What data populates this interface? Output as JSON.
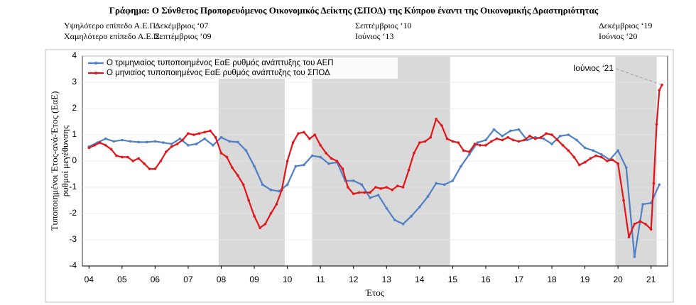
{
  "chart_data": {
    "type": "line",
    "title": "Γράφημα: Ο Σύνθετος Προπορευόμενος Οικονομικός Δείκτης (ΣΠΟΔ) της Κύπρου έναντι της Οικονομικής  Δραστηριότητας",
    "header": [
      {
        "label": "Υψηλότερο επίπεδο Α.Ε.Π:",
        "dates": [
          "Δεκέμβριος ‘07",
          "Σεπτέμβριος ‘10",
          "Δεκέμβριος ‘19"
        ]
      },
      {
        "label": "Χαμηλότερο επίπεδο Α.Ε.Π:",
        "dates": [
          "Σεπτέμβριος ‘09",
          "Ιούνιος ‘13",
          "Ιούνιος ‘20"
        ]
      }
    ],
    "y_label": [
      "Τυποποιημένοι Έτος-ανά-Έτος (ΕαΕ)",
      "ρυθμοί μεγέθυνσης"
    ],
    "x_label": "Έτος",
    "annotation": "Ιούνιος ‘21",
    "xlim": [
      2003.8,
      2021.5
    ],
    "ylim": [
      -4,
      4
    ],
    "yticks": [
      -4,
      -3,
      -2,
      -1,
      0,
      1,
      2,
      3,
      4
    ],
    "xticks": [
      {
        "value": 2004,
        "label": "04"
      },
      {
        "value": 2005,
        "label": "05"
      },
      {
        "value": 2006,
        "label": "06"
      },
      {
        "value": 2007,
        "label": "07"
      },
      {
        "value": 2008,
        "label": "08"
      },
      {
        "value": 2009,
        "label": "09"
      },
      {
        "value": 2010,
        "label": "10"
      },
      {
        "value": 2011,
        "label": "11"
      },
      {
        "value": 2012,
        "label": "12"
      },
      {
        "value": 2013,
        "label": "13"
      },
      {
        "value": 2014,
        "label": "14"
      },
      {
        "value": 2015,
        "label": "15"
      },
      {
        "value": 2016,
        "label": "16"
      },
      {
        "value": 2017,
        "label": "17"
      },
      {
        "value": 2018,
        "label": "18"
      },
      {
        "value": 2019,
        "label": "19"
      },
      {
        "value": 2020,
        "label": "20"
      },
      {
        "value": 2021,
        "label": "21"
      }
    ],
    "grid": true,
    "shaded": [
      [
        2007.92,
        2009.92
      ],
      [
        2010.75,
        2014.92
      ],
      [
        2019.92,
        2021.17
      ]
    ],
    "shade_color": "#d9d9d9",
    "series": [
      {
        "name": "Ο τριμηνιαίος τυποποιημένος ΕαΕ ρυθμός ανάπτυξης του ΑΕΠ",
        "color": "#4f7fc4",
        "x": [
          2004,
          2004.25,
          2004.5,
          2004.75,
          2005,
          2005.25,
          2005.5,
          2005.75,
          2006,
          2006.25,
          2006.5,
          2006.75,
          2007,
          2007.25,
          2007.5,
          2007.75,
          2008,
          2008.25,
          2008.5,
          2008.75,
          2009,
          2009.25,
          2009.5,
          2009.75,
          2010,
          2010.25,
          2010.5,
          2010.75,
          2011,
          2011.25,
          2011.5,
          2011.75,
          2012,
          2012.25,
          2012.5,
          2012.75,
          2013,
          2013.25,
          2013.5,
          2013.75,
          2014,
          2014.25,
          2014.5,
          2014.75,
          2015,
          2015.25,
          2015.5,
          2015.75,
          2016,
          2016.25,
          2016.5,
          2016.75,
          2017,
          2017.25,
          2017.5,
          2017.75,
          2018,
          2018.25,
          2018.5,
          2018.75,
          2019,
          2019.25,
          2019.5,
          2019.75,
          2020,
          2020.25,
          2020.5,
          2020.75,
          2021,
          2021.25
        ],
        "values": [
          0.55,
          0.7,
          0.85,
          0.75,
          0.8,
          0.75,
          0.72,
          0.72,
          0.75,
          0.7,
          0.65,
          0.85,
          0.6,
          0.65,
          0.85,
          0.6,
          0.9,
          0.75,
          0.72,
          0.4,
          -0.2,
          -0.9,
          -1.1,
          -1.15,
          -0.9,
          -0.2,
          -0.15,
          0.2,
          0.15,
          -0.1,
          -0.05,
          -0.75,
          -0.75,
          -0.9,
          -1.4,
          -1.3,
          -1.8,
          -2.25,
          -2.4,
          -2.1,
          -1.75,
          -1.35,
          -0.85,
          -0.9,
          -0.75,
          -0.2,
          0.25,
          0.7,
          0.8,
          1.2,
          0.95,
          1.15,
          1.2,
          0.8,
          0.9,
          0.85,
          0.65,
          0.95,
          1.0,
          0.8,
          0.5,
          0.4,
          0.25,
          0.05,
          0.4,
          -0.25,
          -3.65,
          -1.65,
          -1.6,
          -0.9
        ]
      },
      {
        "name": "Ο μηνιαίος τυποποιημένος ΕαΕ ρυθμός ανάπτυξης του ΣΠΟΔ",
        "color": "#e0161b",
        "x": [
          2004,
          2004.17,
          2004.33,
          2004.5,
          2004.67,
          2004.83,
          2005,
          2005.17,
          2005.33,
          2005.5,
          2005.67,
          2005.83,
          2006,
          2006.17,
          2006.33,
          2006.5,
          2006.67,
          2006.83,
          2007,
          2007.17,
          2007.33,
          2007.5,
          2007.67,
          2007.83,
          2008,
          2008.17,
          2008.33,
          2008.5,
          2008.67,
          2008.83,
          2009,
          2009.17,
          2009.33,
          2009.5,
          2009.67,
          2009.83,
          2010,
          2010.17,
          2010.33,
          2010.5,
          2010.67,
          2010.83,
          2011,
          2011.17,
          2011.33,
          2011.5,
          2011.67,
          2011.83,
          2012,
          2012.17,
          2012.33,
          2012.5,
          2012.67,
          2012.83,
          2013,
          2013.17,
          2013.33,
          2013.5,
          2013.67,
          2013.83,
          2014,
          2014.17,
          2014.33,
          2014.5,
          2014.67,
          2014.83,
          2015,
          2015.17,
          2015.33,
          2015.5,
          2015.67,
          2015.83,
          2016,
          2016.17,
          2016.33,
          2016.5,
          2016.67,
          2016.83,
          2017,
          2017.17,
          2017.33,
          2017.5,
          2017.67,
          2017.83,
          2018,
          2018.17,
          2018.33,
          2018.5,
          2018.67,
          2018.83,
          2019,
          2019.17,
          2019.33,
          2019.5,
          2019.67,
          2019.83,
          2020,
          2020.17,
          2020.33,
          2020.5,
          2020.67,
          2020.83,
          2021,
          2021.08,
          2021.17,
          2021.25,
          2021.33
        ],
        "values": [
          0.5,
          0.6,
          0.7,
          0.6,
          0.45,
          0.2,
          0.15,
          0.15,
          0.0,
          0.1,
          -0.1,
          -0.3,
          -0.3,
          0.0,
          0.35,
          0.55,
          0.65,
          0.8,
          1.05,
          1.0,
          1.05,
          1.1,
          1.15,
          0.9,
          0.3,
          0.15,
          -0.25,
          -0.55,
          -0.9,
          -1.5,
          -2.1,
          -2.55,
          -2.4,
          -2.0,
          -1.65,
          -1.1,
          0.0,
          0.7,
          1.05,
          1.1,
          0.85,
          1.0,
          0.6,
          0.3,
          0.1,
          0.0,
          -0.3,
          -1.0,
          -1.25,
          -1.2,
          -1.2,
          -1.2,
          -1.0,
          -1.05,
          -1.0,
          -1.1,
          -0.95,
          -1.0,
          -0.35,
          0.3,
          0.7,
          0.75,
          0.9,
          1.6,
          1.35,
          0.85,
          0.75,
          0.7,
          0.4,
          0.35,
          0.65,
          0.6,
          0.6,
          0.75,
          0.85,
          0.8,
          0.9,
          0.8,
          0.75,
          0.8,
          0.95,
          0.85,
          0.9,
          1.05,
          1.0,
          0.8,
          0.6,
          0.4,
          0.15,
          -0.15,
          -0.05,
          0.1,
          0.2,
          0.15,
          0.0,
          0.05,
          -0.1,
          -1.5,
          -2.9,
          -2.4,
          -2.3,
          -2.4,
          -2.6,
          -0.85,
          1.4,
          2.7,
          2.9
        ]
      }
    ]
  }
}
